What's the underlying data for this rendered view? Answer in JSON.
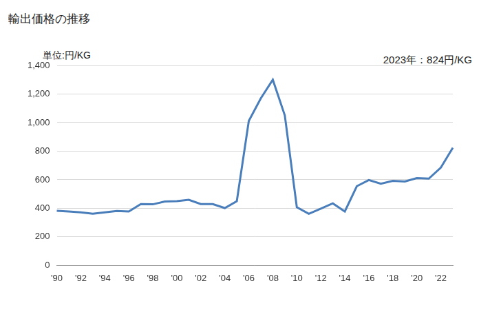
{
  "chart_data": {
    "type": "line",
    "title": "輸出価格の推移",
    "y_label": "単位:円/KG",
    "annotations": [
      "2023年：824円/KG"
    ],
    "categories": [
      "'90",
      null,
      "'92",
      null,
      "'94",
      null,
      "'96",
      null,
      "'98",
      null,
      "'00",
      null,
      "'02",
      null,
      "'04",
      null,
      "'06",
      null,
      "'08",
      null,
      "'10",
      null,
      "'12",
      null,
      "'14",
      null,
      "'16",
      null,
      "'18",
      null,
      "'20",
      null,
      "'22",
      null
    ],
    "values": [
      383,
      378,
      372,
      362,
      372,
      382,
      378,
      430,
      428,
      448,
      450,
      460,
      430,
      430,
      402,
      450,
      1012,
      1170,
      1300,
      1050,
      408,
      362,
      398,
      435,
      378,
      555,
      598,
      572,
      592,
      588,
      612,
      608,
      685,
      824
    ],
    "color": "#4a7ebb",
    "ylim": [
      0,
      1400
    ],
    "yticks": [
      0,
      200,
      400,
      600,
      800,
      {
        "value": 1000,
        "label": "1,000"
      },
      {
        "value": 1200,
        "label": "1,200"
      },
      {
        "value": 1400,
        "label": "1,400"
      }
    ],
    "grid": true
  }
}
